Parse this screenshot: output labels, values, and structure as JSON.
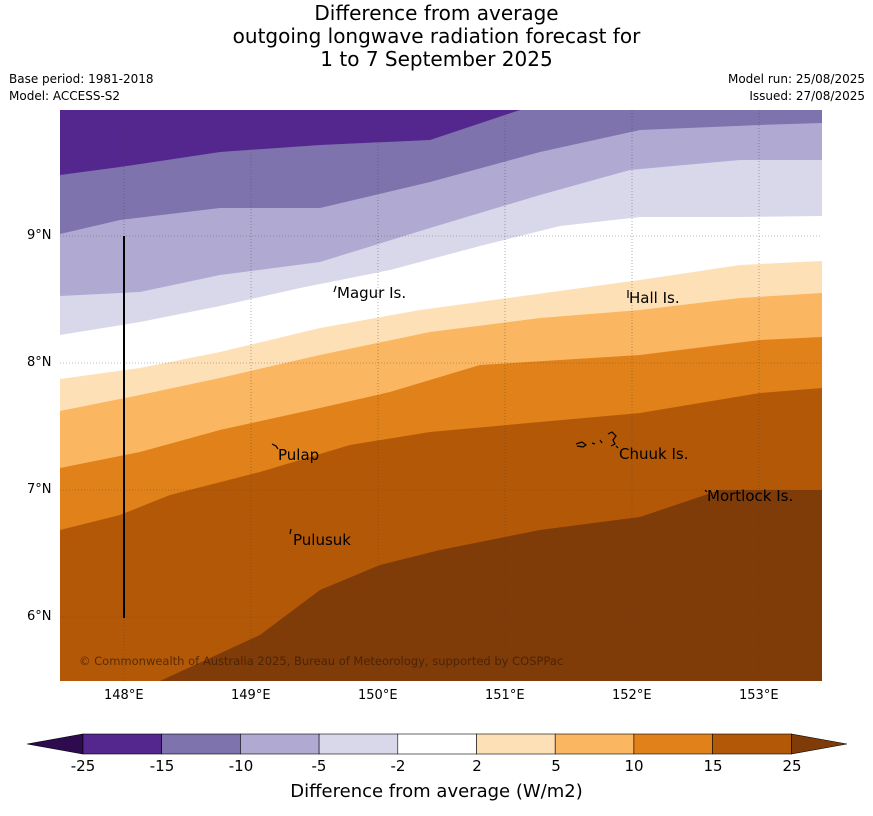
{
  "title": {
    "line1": "Difference from average",
    "line2": "outgoing longwave radiation forecast for",
    "line3": "1 to 7 September 2025"
  },
  "meta_left": {
    "base_period": "Base period: 1981-2018",
    "model": "Model: ACCESS-S2"
  },
  "meta_right": {
    "model_run": "Model run: 25/08/2025",
    "issued": "Issued: 27/08/2025"
  },
  "map": {
    "x_ticks": [
      "148°E",
      "149°E",
      "150°E",
      "151°E",
      "152°E",
      "153°E"
    ],
    "y_ticks": [
      "9°N",
      "8°N",
      "7°N",
      "6°N"
    ],
    "places": [
      "Magur Is.",
      "Hall Is.",
      "Pulap",
      "Chuuk Is.",
      "Mortlock Is.",
      "Pulusuk"
    ],
    "copyright": "© Commonwealth of Australia 2025, Bureau of Meteorology, supported by COSPPac",
    "band_colors": [
      "#4d1c82",
      "#54278f",
      "#7e73ad",
      "#b0aad2",
      "#d9d8ea",
      "#ffffff",
      "#fde0b6",
      "#fab661",
      "#e0811a",
      "#b35806",
      "#7f3b08"
    ]
  },
  "colorbar": {
    "labels": [
      "-25",
      "-15",
      "-10",
      "-5",
      "-2",
      "2",
      "5",
      "10",
      "15",
      "25"
    ],
    "colors": [
      "#54278f",
      "#7e73ad",
      "#b0aad2",
      "#d9d8ea",
      "#ffffff",
      "#fde0b6",
      "#fab661",
      "#e0811a",
      "#b35806"
    ],
    "under_color": "#2d0b4e",
    "over_color": "#7f3b08",
    "title": "Difference from average (W/m2)"
  }
}
